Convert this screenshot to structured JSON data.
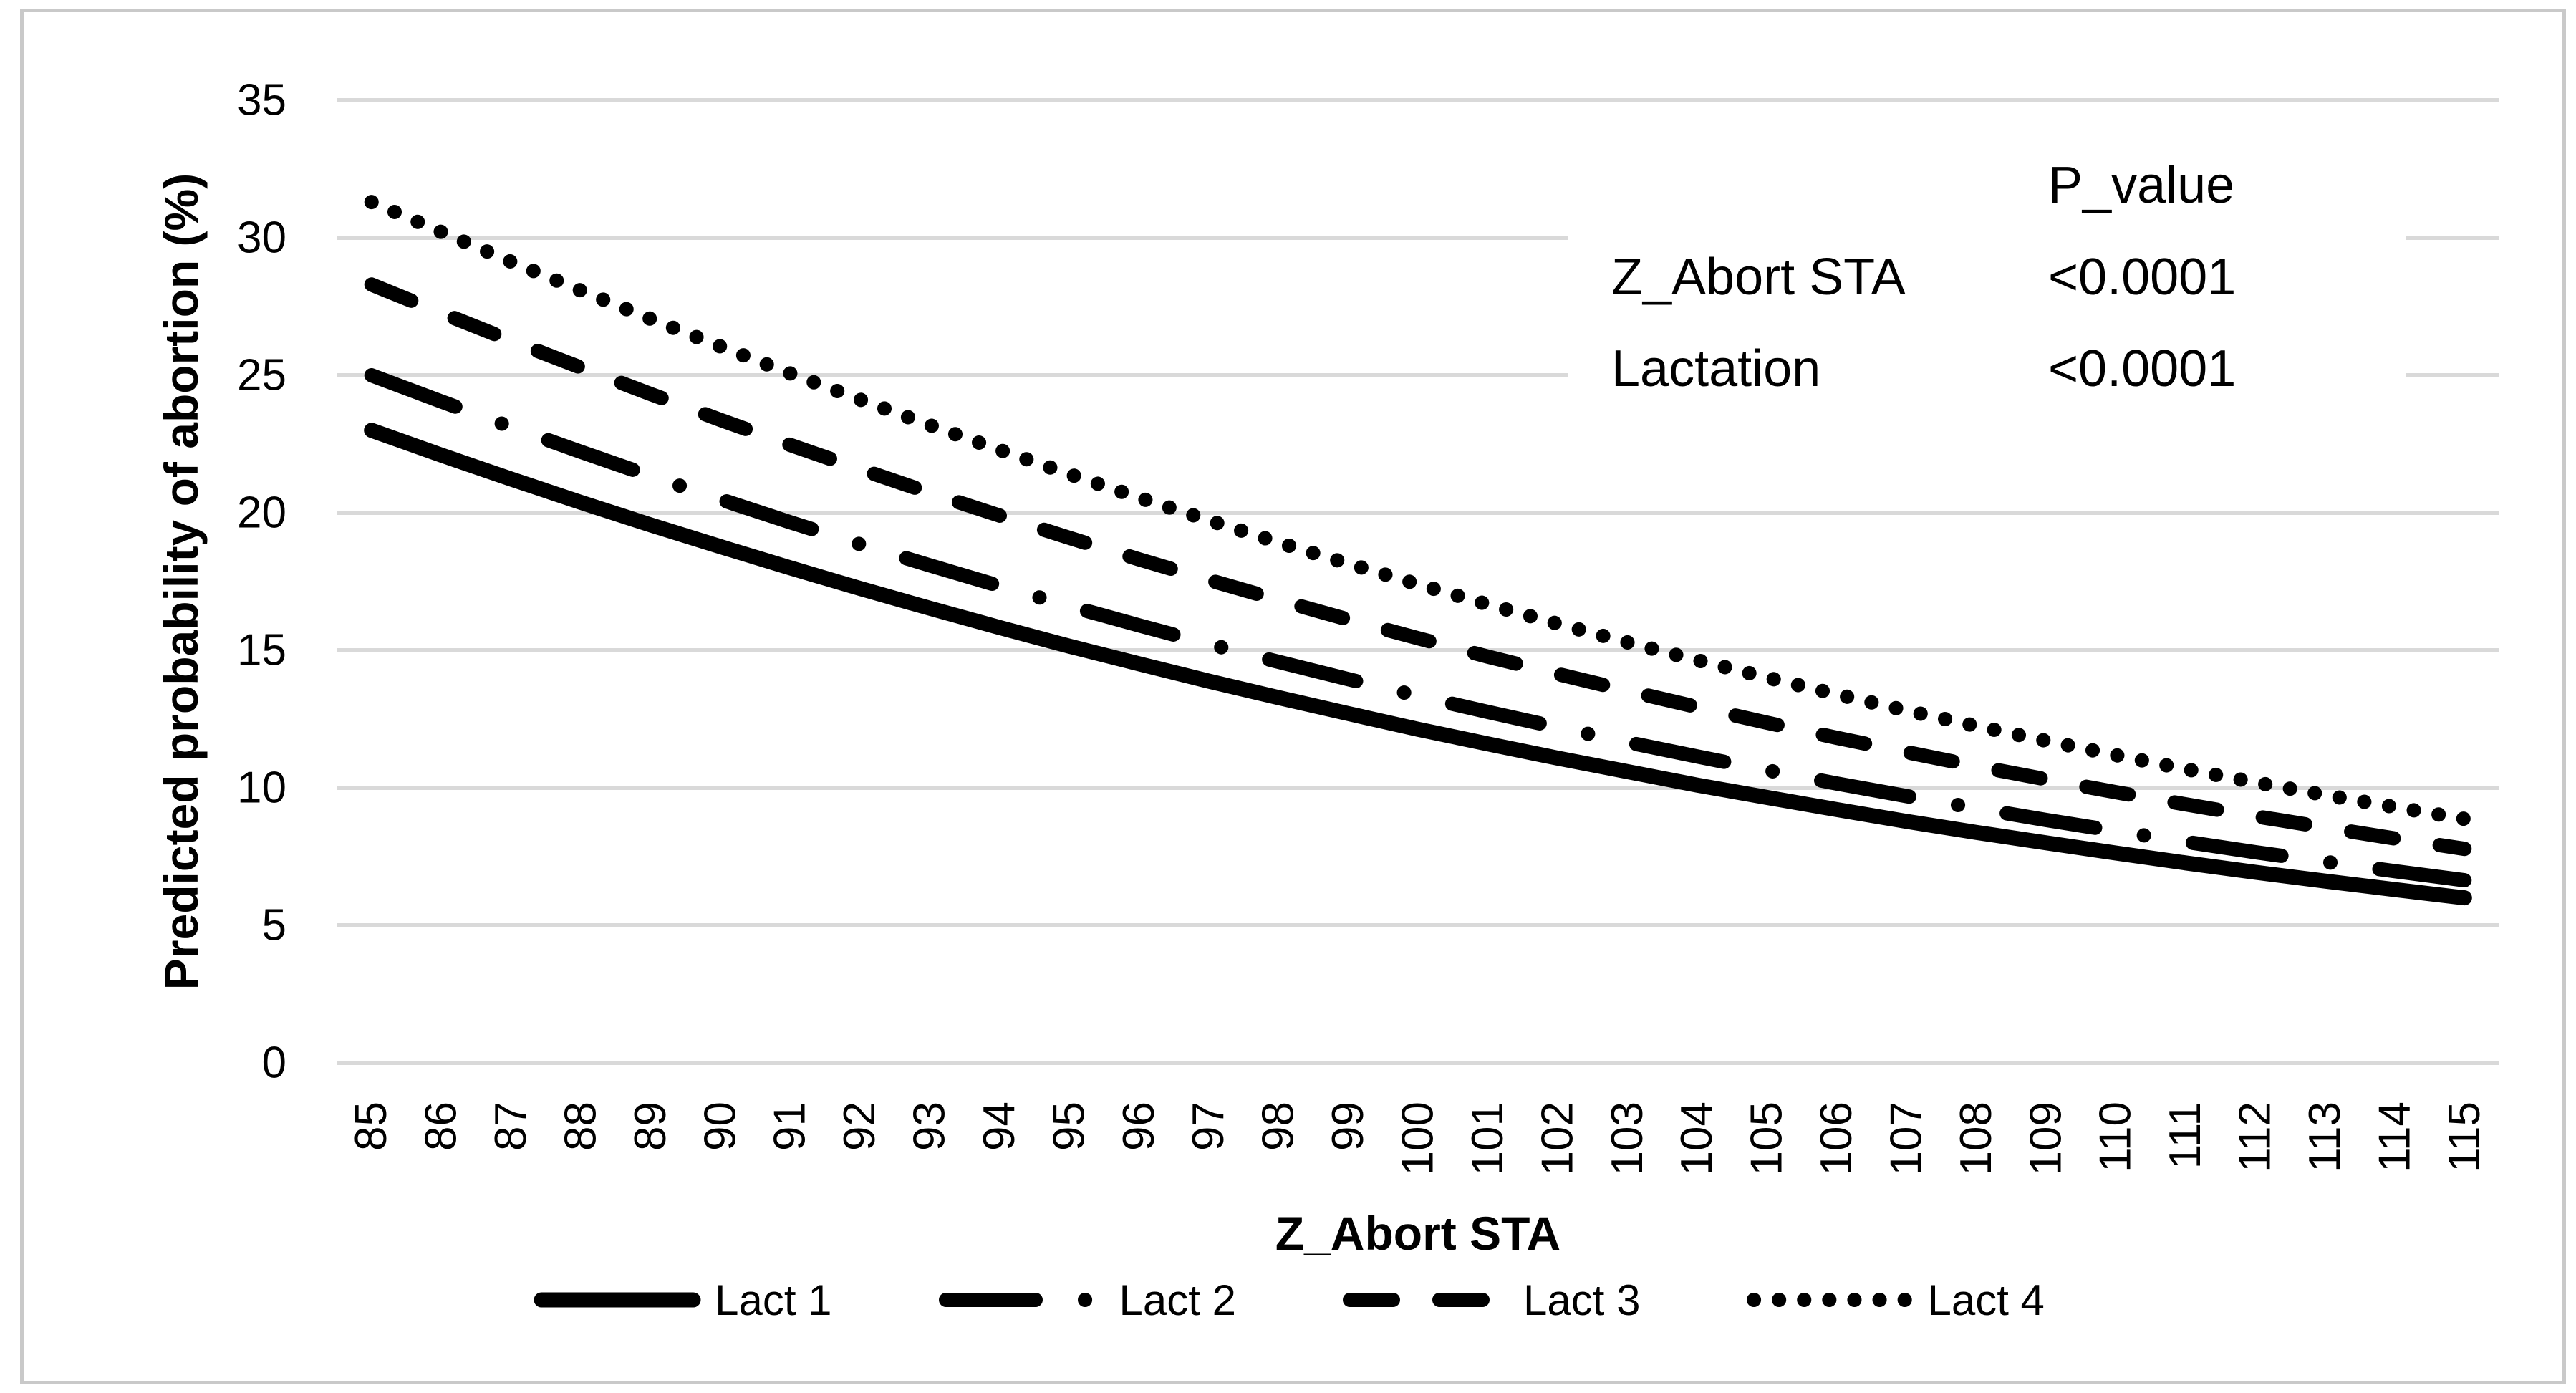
{
  "figure": {
    "background": "#ffffff",
    "border_color": "#c9c9c9",
    "gridline_color": "#d9d9d9",
    "line_color": "#000000"
  },
  "chart_data": {
    "type": "line",
    "title": "",
    "xlabel": "Z_Abort STA",
    "ylabel": "Predicted probability of abortion (%)",
    "x": [
      "85",
      "86",
      "87",
      "88",
      "89",
      "90",
      "91",
      "92",
      "93",
      "94",
      "95",
      "96",
      "97",
      "98",
      "99",
      "100",
      "101",
      "102",
      "103",
      "104",
      "105",
      "106",
      "107",
      "108",
      "109",
      "110",
      "111",
      "112",
      "113",
      "114",
      "115"
    ],
    "ylim": [
      0,
      35
    ],
    "yticks": [
      0,
      5,
      10,
      15,
      20,
      25,
      30,
      35
    ],
    "grid": true,
    "legend_position": "bottom",
    "series": [
      {
        "name": "Lact 1",
        "style": "solid",
        "color": "#000000",
        "values": [
          23.0,
          22.1,
          21.23,
          20.38,
          19.56,
          18.77,
          18.0,
          17.25,
          16.53,
          15.83,
          15.15,
          14.51,
          13.88,
          13.28,
          12.7,
          12.13,
          11.6,
          11.08,
          10.59,
          10.1,
          9.65,
          9.21,
          8.78,
          8.38,
          8.0,
          7.63,
          7.27,
          6.93,
          6.61,
          6.3,
          6.0
        ]
      },
      {
        "name": "Lact 2",
        "style": "dash-dot",
        "color": "#000000",
        "values": [
          25.0,
          24.05,
          23.12,
          22.22,
          21.34,
          20.49,
          19.66,
          18.86,
          18.09,
          17.34,
          16.61,
          15.91,
          15.23,
          14.58,
          13.95,
          13.34,
          12.76,
          12.2,
          11.66,
          11.14,
          10.64,
          10.16,
          9.7,
          9.26,
          8.83,
          8.43,
          8.04,
          7.66,
          7.31,
          6.97,
          6.64
        ]
      },
      {
        "name": "Lact 3",
        "style": "dash",
        "color": "#000000",
        "values": [
          28.3,
          27.27,
          26.26,
          25.28,
          24.32,
          23.38,
          22.47,
          21.59,
          20.73,
          19.9,
          19.09,
          18.31,
          17.56,
          16.83,
          16.12,
          15.44,
          14.77,
          14.14,
          13.53,
          12.94,
          12.37,
          11.82,
          11.3,
          10.79,
          10.31,
          9.84,
          9.4,
          8.97,
          8.56,
          8.16,
          7.78
        ]
      },
      {
        "name": "Lact 4",
        "style": "dot",
        "color": "#000000",
        "values": [
          31.3,
          30.21,
          29.13,
          28.08,
          27.05,
          26.05,
          25.07,
          24.12,
          23.19,
          22.29,
          21.41,
          20.55,
          19.73,
          18.92,
          18.15,
          17.4,
          16.67,
          15.97,
          15.29,
          14.64,
          14.01,
          13.4,
          12.81,
          12.25,
          11.71,
          11.19,
          10.68,
          10.2,
          9.74,
          9.3,
          8.87
        ]
      }
    ],
    "annotation": {
      "header": "P_value",
      "rows": [
        {
          "label": "Z_Abort STA",
          "value": "<0.0001"
        },
        {
          "label": "Lactation",
          "value": "<0.0001"
        }
      ]
    }
  }
}
